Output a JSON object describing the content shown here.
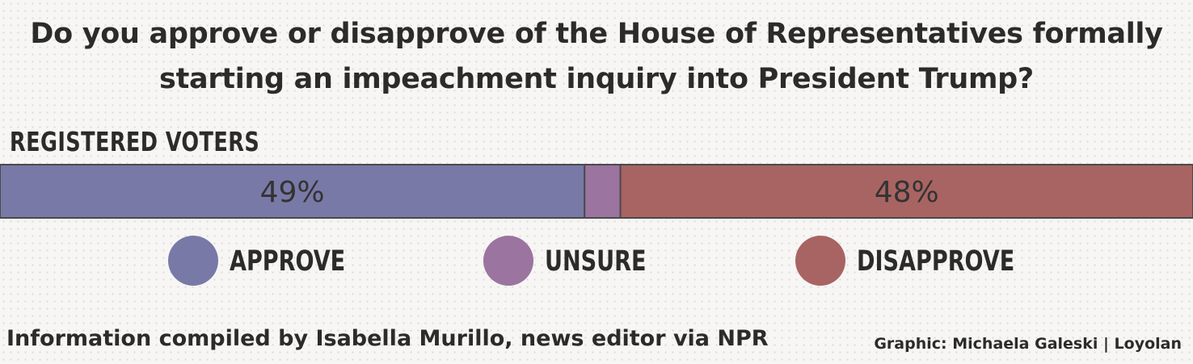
{
  "chart_data": {
    "type": "bar",
    "orientation": "horizontal-stacked",
    "title": "Do you approve or disapprove of the House of Representatives formally starting an impeachment inquiry into President Trump?",
    "title_lines": [
      "Do you approve or disapprove of the House of Representatives formally",
      "starting an impeachment inquiry into President Trump?"
    ],
    "categories": [
      "REGISTERED VOTERS"
    ],
    "series": [
      {
        "name": "APPROVE",
        "values": [
          49
        ],
        "label": "49%",
        "color": "#7979a8"
      },
      {
        "name": "UNSURE",
        "values": [
          3
        ],
        "label": "",
        "color": "#9b74a0"
      },
      {
        "name": "DISAPPROVE",
        "values": [
          48
        ],
        "label": "48%",
        "color": "#a86462"
      }
    ],
    "xlim": [
      0,
      100
    ],
    "legend_position": "bottom",
    "grid": false,
    "units": "%"
  },
  "footer": {
    "source": "Information compiled by Isabella Murillo, news editor via NPR",
    "credit": "Graphic: Michaela Galeski | Loyolan"
  },
  "colors": {
    "bar_outline": "#4a4a4a",
    "text": "#2b2b2b",
    "background": "#f7f6f4"
  }
}
